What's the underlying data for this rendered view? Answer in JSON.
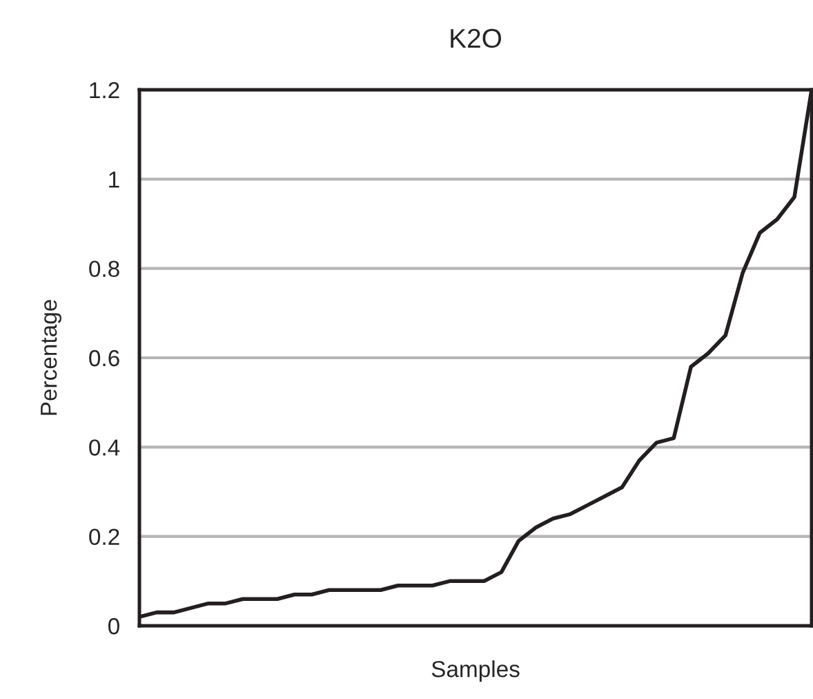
{
  "chart_data": {
    "type": "line",
    "title": "K2O",
    "xlabel": "Samples",
    "ylabel": "Percentage",
    "categories": [
      null,
      null,
      null,
      null,
      null,
      null,
      null,
      null,
      null,
      null,
      null,
      null,
      null,
      null,
      null,
      null,
      null,
      null,
      null,
      null,
      null,
      null,
      null,
      null,
      null,
      null,
      null,
      null,
      null,
      null,
      null,
      null,
      null,
      null,
      null,
      null,
      null,
      null,
      null,
      null
    ],
    "series": [
      {
        "color": "#231f20",
        "values": [
          0.02,
          0.03,
          0.03,
          0.04,
          0.05,
          0.05,
          0.06,
          0.06,
          0.06,
          0.07,
          0.07,
          0.08,
          0.08,
          0.08,
          0.08,
          0.09,
          0.09,
          0.09,
          0.1,
          0.1,
          0.1,
          0.12,
          0.19,
          0.22,
          0.24,
          0.25,
          0.27,
          0.29,
          0.31,
          0.37,
          0.41,
          0.42,
          0.58,
          0.61,
          0.65,
          0.79,
          0.88,
          0.91,
          0.96,
          1.2
        ]
      }
    ],
    "ylim": [
      0,
      1.2
    ],
    "yticks": [
      0,
      0.2,
      0.4,
      0.6,
      0.8,
      1,
      1.2
    ],
    "grid": "y",
    "tick_labels": "y",
    "marker": "none",
    "line_style": "solid"
  }
}
